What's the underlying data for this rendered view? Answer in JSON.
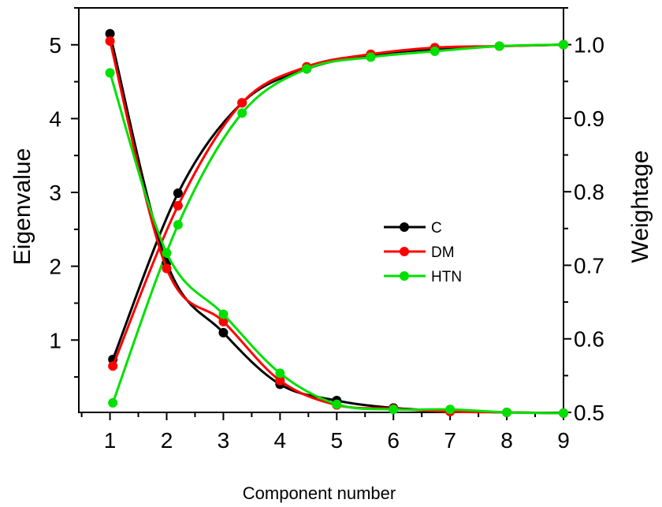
{
  "chart_data": {
    "type": "line",
    "xlabel": "Component number",
    "ylabel_left": "Eigenvalue",
    "ylabel_right": "Weightage",
    "xlim": [
      0.45,
      9
    ],
    "ylim_left": [
      0.02,
      5.5
    ],
    "ylim_right": [
      0.5,
      1.05
    ],
    "x_ticks": [
      "1",
      "2",
      "3",
      "4",
      "5",
      "6",
      "7",
      "8",
      "9"
    ],
    "y_left_ticks": [
      "1",
      "2",
      "3",
      "4",
      "5"
    ],
    "y_right_ticks": [
      "0.5",
      "0.6",
      "0.7",
      "0.8",
      "0.9",
      "1.0"
    ],
    "grid": false,
    "legend_position": "center-right",
    "legend": [
      "C",
      "DM",
      "HTN"
    ],
    "colors": {
      "C": "#000000",
      "DM": "#ff0000",
      "HTN": "#00e000"
    },
    "eigenvalue_series": [
      {
        "name": "C",
        "axis": "left",
        "x": [
          1,
          2,
          3,
          4,
          5,
          6,
          7,
          8,
          9
        ],
        "y": [
          5.15,
          2.05,
          1.1,
          0.4,
          0.18,
          0.08,
          0.04,
          0.02,
          0.01
        ]
      },
      {
        "name": "DM",
        "axis": "left",
        "x": [
          1,
          2,
          3,
          4,
          5,
          6,
          7,
          8,
          9
        ],
        "y": [
          5.05,
          1.97,
          1.25,
          0.45,
          0.12,
          0.07,
          0.03,
          0.02,
          0.01
        ]
      },
      {
        "name": "HTN",
        "axis": "left",
        "x": [
          1,
          2,
          3,
          4,
          5,
          6,
          7,
          8,
          9
        ],
        "y": [
          4.62,
          2.18,
          1.35,
          0.55,
          0.13,
          0.06,
          0.06,
          0.02,
          0.01
        ]
      }
    ],
    "weightage_series": [
      {
        "name": "C",
        "axis": "right",
        "x": [
          1.05,
          2.2,
          3.33,
          4.47,
          5.6,
          6.73,
          7.87,
          9
        ],
        "y": [
          0.572,
          0.798,
          0.921,
          0.967,
          0.986,
          0.994,
          0.998,
          1.0
        ]
      },
      {
        "name": "DM",
        "axis": "right",
        "x": [
          1.05,
          2.2,
          3.33,
          4.47,
          5.6,
          6.73,
          7.87,
          9
        ],
        "y": [
          0.563,
          0.781,
          0.921,
          0.97,
          0.987,
          0.996,
          0.998,
          1.0
        ]
      },
      {
        "name": "HTN",
        "axis": "right",
        "x": [
          1.05,
          2.2,
          3.33,
          4.47,
          5.6,
          6.73,
          7.87,
          9
        ],
        "y": [
          0.513,
          0.755,
          0.907,
          0.967,
          0.983,
          0.991,
          0.998,
          1.0
        ]
      }
    ]
  }
}
